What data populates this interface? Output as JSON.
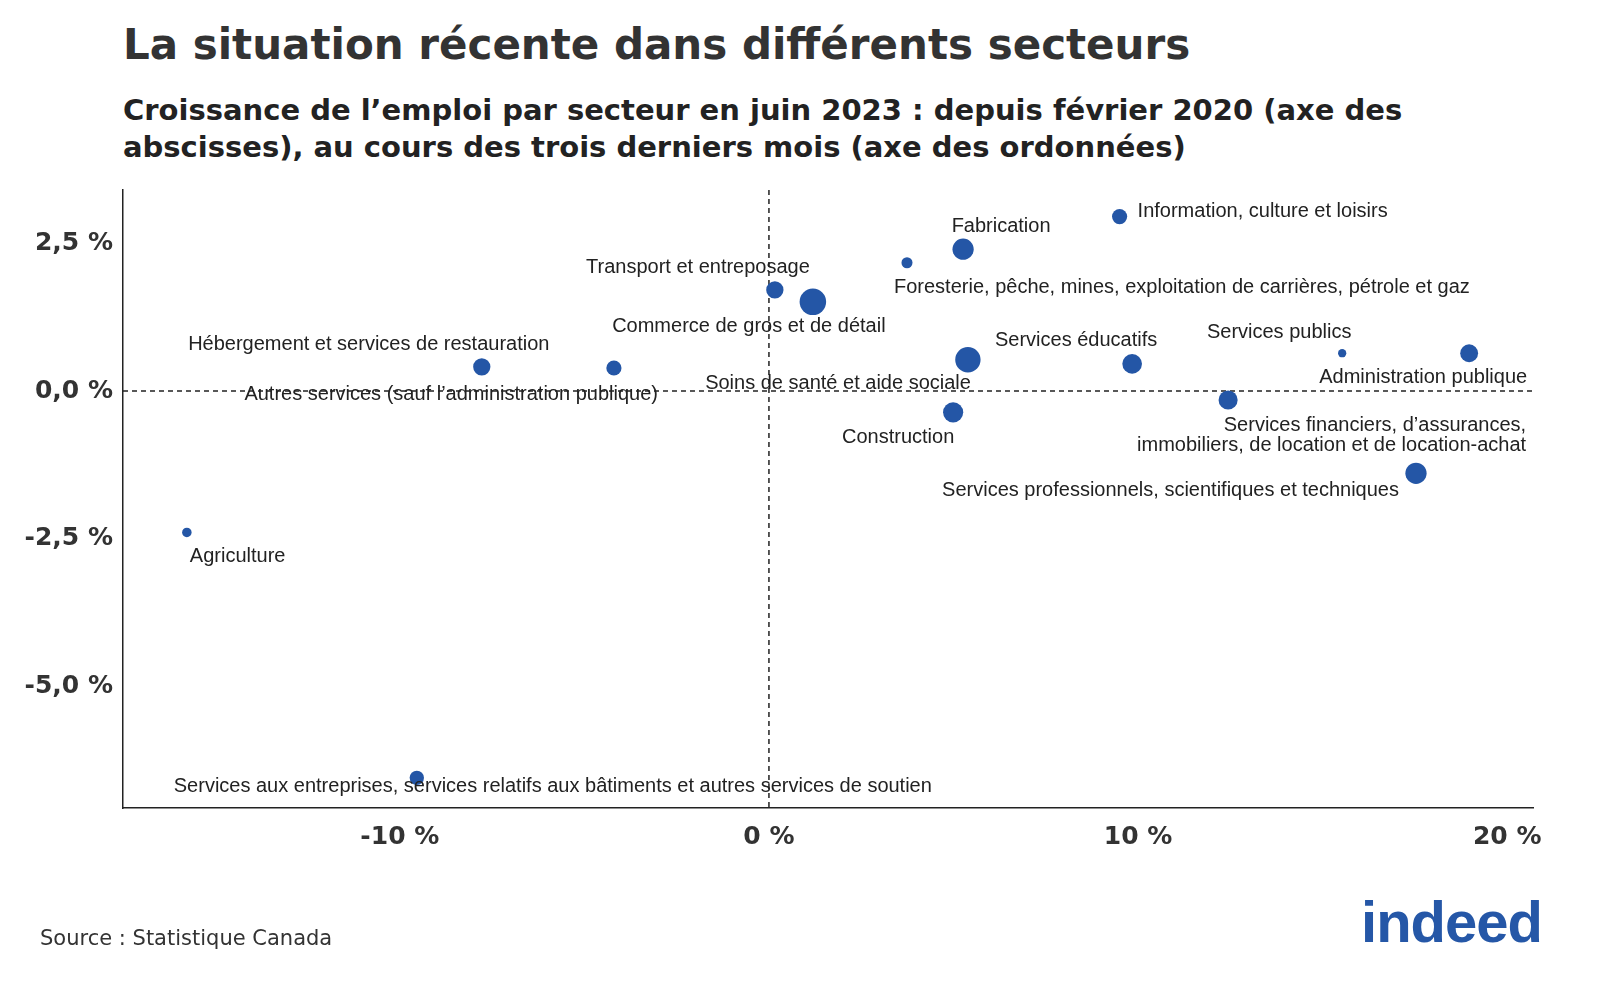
{
  "chart_data": {
    "type": "bubble",
    "title": "La situation récente dans différents secteurs",
    "subtitle": "Croissance de l’emploi par secteur en juin 2023 : depuis février 2020 (axe des abscisses), au cours des trois derniers mois (axe des ordonnées)",
    "source": "Source : Statistique Canada",
    "logo": "indeed",
    "labels": [
      "Information, culture et loisirs",
      "Fabrication",
      "Foresterie, pêche, mines, exploitation de carrières, pétrole et gaz",
      "Transport et entreposage",
      "Commerce de gros et de détail",
      "Hébergement et services de restauration",
      "Autres services (sauf l’administration publique)",
      "Soins de santé et aide sociale",
      "Services éducatifs",
      "Services publics",
      "Administration publique",
      "Construction",
      [
        "Services financiers, d’assurances,",
        "immobiliers, de location et de location-achat"
      ],
      "Services professionnels, scientifiques et techniques",
      "Agriculture",
      "Services aux entreprises, services relatifs aux bâtiments et autres services de soutien"
    ],
    "x": [
      9.5,
      5.26,
      3.74,
      0.16,
      1.19,
      -7.78,
      -4.2,
      5.39,
      9.84,
      15.53,
      18.97,
      4.99,
      12.44,
      17.53,
      -15.77,
      -9.54
    ],
    "y": [
      2.95,
      2.4,
      2.17,
      1.71,
      1.51,
      0.41,
      0.39,
      0.53,
      0.46,
      0.64,
      0.64,
      -0.36,
      -0.15,
      -1.39,
      -2.39,
      -6.54
    ],
    "sizes": [
      800,
      1800,
      350,
      1100,
      3000,
      1100,
      800,
      2700,
      1500,
      150,
      1200,
      1600,
      1400,
      1800,
      230,
      700
    ],
    "color": "#2456a6",
    "xlim": [
      -17.5,
      20.7
    ],
    "ylim": [
      -7.05,
      3.4
    ],
    "xticks": [
      {
        "value": -10,
        "label": "-10 %"
      },
      {
        "value": 0,
        "label": "0 %"
      },
      {
        "value": 10,
        "label": "10 %"
      },
      {
        "value": 20,
        "label": "20 %"
      }
    ],
    "yticks": [
      {
        "value": -5,
        "label": "-5,0 %"
      },
      {
        "value": -2.5,
        "label": "-2,5 %"
      },
      {
        "value": 0,
        "label": "0,0 %"
      },
      {
        "value": 2.5,
        "label": "2,5 %"
      }
    ],
    "hlines": [
      0
    ],
    "vlines": [
      0
    ],
    "grid": false
  }
}
